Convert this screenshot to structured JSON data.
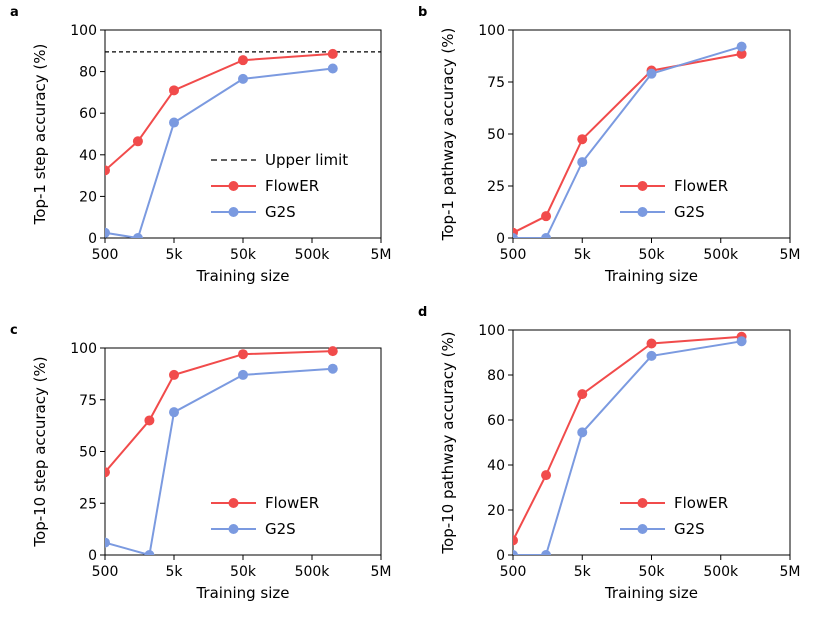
{
  "chart_data": [
    {
      "panel": "a",
      "type": "line",
      "xscale": "log",
      "xlabel": "Training size",
      "ylabel": "Top-1 step accuracy (%)",
      "xlim": [
        500,
        5000000
      ],
      "ylim": [
        0,
        100
      ],
      "xticks": [
        500,
        5000,
        50000,
        500000,
        5000000
      ],
      "xtick_labels": [
        "500",
        "5k",
        "50k",
        "500k",
        "5M"
      ],
      "yticks": [
        0,
        20,
        40,
        60,
        80,
        100
      ],
      "ytick_labels": [
        "0",
        "20",
        "40",
        "60",
        "80",
        "100"
      ],
      "reference_line": {
        "y": 89.5,
        "label": "Upper limit",
        "color": "#000000"
      },
      "legend_position": "lower-right",
      "series": [
        {
          "name": "FlowER",
          "color": "#f14b4b",
          "x": [
            500,
            1500,
            5000,
            50000,
            1000000
          ],
          "values": [
            32.5,
            46.5,
            71,
            85.5,
            88.5
          ]
        },
        {
          "name": "G2S",
          "color": "#7b9ae0",
          "x": [
            500,
            1500,
            5000,
            50000,
            1000000
          ],
          "values": [
            2.5,
            0,
            55.5,
            76.5,
            81.5
          ]
        }
      ]
    },
    {
      "panel": "b",
      "type": "line",
      "xscale": "log",
      "xlabel": "Training size",
      "ylabel": "Top-1 pathway accuracy (%)",
      "xlim": [
        500,
        5000000
      ],
      "ylim": [
        0,
        100
      ],
      "xticks": [
        500,
        5000,
        50000,
        500000,
        5000000
      ],
      "xtick_labels": [
        "500",
        "5k",
        "50k",
        "500k",
        "5M"
      ],
      "yticks": [
        0,
        25,
        50,
        75,
        100
      ],
      "ytick_labels": [
        "0",
        "25",
        "50",
        "75",
        "100"
      ],
      "legend_position": "lower-right",
      "series": [
        {
          "name": "FlowER",
          "color": "#f14b4b",
          "x": [
            500,
            1500,
            5000,
            50000,
            1000000
          ],
          "values": [
            2.5,
            10.5,
            47.5,
            80.5,
            88.5
          ]
        },
        {
          "name": "G2S",
          "color": "#7b9ae0",
          "x": [
            500,
            1500,
            5000,
            50000,
            1000000
          ],
          "values": [
            0,
            0,
            36.5,
            79,
            92
          ]
        }
      ]
    },
    {
      "panel": "c",
      "type": "line",
      "xscale": "log",
      "xlabel": "Training size",
      "ylabel": "Top-10 step accuracy (%)",
      "xlim": [
        500,
        5000000
      ],
      "ylim": [
        0,
        100
      ],
      "xticks": [
        500,
        5000,
        50000,
        500000,
        5000000
      ],
      "xtick_labels": [
        "500",
        "5k",
        "50k",
        "500k",
        "5M"
      ],
      "yticks": [
        0,
        25,
        50,
        75,
        100
      ],
      "ytick_labels": [
        "0",
        "25",
        "50",
        "75",
        "100"
      ],
      "legend_position": "lower-right",
      "series": [
        {
          "name": "FlowER",
          "color": "#f14b4b",
          "x": [
            500,
            2200,
            5000,
            50000,
            1000000
          ],
          "values": [
            40,
            65,
            87,
            97,
            98.5
          ]
        },
        {
          "name": "G2S",
          "color": "#7b9ae0",
          "x": [
            500,
            2200,
            5000,
            50000,
            1000000
          ],
          "values": [
            6,
            0,
            69,
            87,
            90
          ]
        }
      ]
    },
    {
      "panel": "d",
      "type": "line",
      "xscale": "log",
      "xlabel": "Training size",
      "ylabel": "Top-10 pathway accuracy (%)",
      "xlim": [
        500,
        5000000
      ],
      "ylim": [
        0,
        100
      ],
      "xticks": [
        500,
        5000,
        50000,
        500000,
        5000000
      ],
      "xtick_labels": [
        "500",
        "5k",
        "50k",
        "500k",
        "5M"
      ],
      "yticks": [
        0,
        20,
        40,
        60,
        80,
        100
      ],
      "ytick_labels": [
        "0",
        "20",
        "40",
        "60",
        "80",
        "100"
      ],
      "legend_position": "lower-right",
      "series": [
        {
          "name": "FlowER",
          "color": "#f14b4b",
          "x": [
            500,
            1500,
            5000,
            50000,
            1000000
          ],
          "values": [
            6.5,
            35.5,
            71.5,
            94,
            97
          ]
        },
        {
          "name": "G2S",
          "color": "#7b9ae0",
          "x": [
            500,
            1500,
            5000,
            50000,
            1000000
          ],
          "values": [
            0,
            0,
            54.5,
            88.5,
            95
          ]
        }
      ]
    }
  ]
}
